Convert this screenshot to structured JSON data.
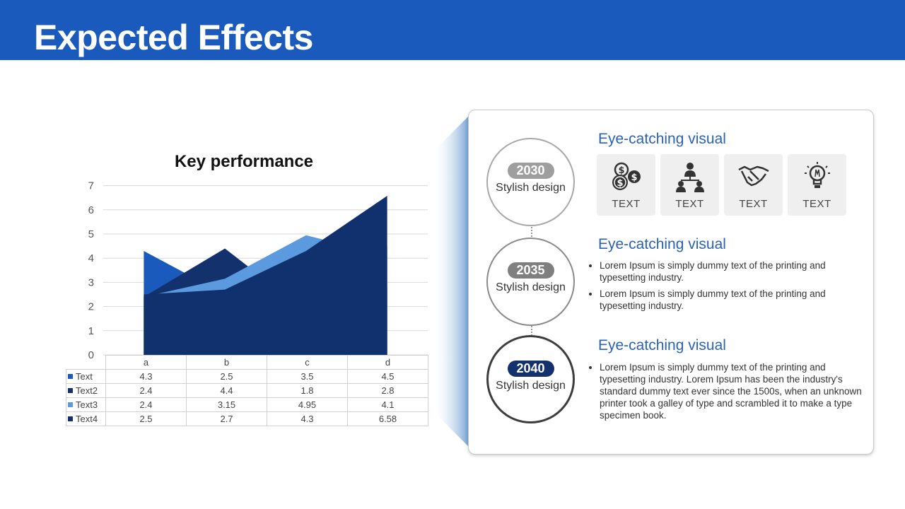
{
  "slide": {
    "title": "Expected Effects"
  },
  "chart_data": {
    "type": "area",
    "title": "Key performance",
    "categories": [
      "a",
      "b",
      "c",
      "d"
    ],
    "series": [
      {
        "name": "Text",
        "values": [
          4.3,
          2.5,
          3.5,
          4.5
        ],
        "color": "#1a5abd"
      },
      {
        "name": "Text2",
        "values": [
          2.4,
          4.4,
          1.8,
          2.8
        ],
        "color": "#13316d"
      },
      {
        "name": "Text3",
        "values": [
          2.4,
          3.15,
          4.95,
          4.1
        ],
        "color": "#5b9ade"
      },
      {
        "name": "Text4",
        "values": [
          2.5,
          2.7,
          4.3,
          6.58
        ],
        "color": "#11316e"
      }
    ],
    "ylim": [
      0,
      7
    ],
    "yticks": [
      "0",
      "1",
      "2",
      "3",
      "4",
      "5",
      "6",
      "7"
    ],
    "xlabel": "",
    "ylabel": "",
    "grid": true,
    "legend": "data-table"
  },
  "panel": {
    "rows": [
      {
        "year": "2030",
        "year_color": "#9e9e9e",
        "circle_border": "#a8a8a8",
        "subtitle": "Stylish design",
        "heading": "Eye-catching visual",
        "tiles": [
          {
            "icon": "coins-dollar-icon",
            "label": "TEXT"
          },
          {
            "icon": "team-hierarchy-icon",
            "label": "TEXT"
          },
          {
            "icon": "handshake-icon",
            "label": "TEXT"
          },
          {
            "icon": "lightbulb-icon",
            "label": "TEXT"
          }
        ]
      },
      {
        "year": "2035",
        "year_color": "#7f7f7f",
        "circle_border": "#8a8a8a",
        "subtitle": "Stylish design",
        "heading": "Eye-catching visual",
        "bullets": [
          "Lorem Ipsum is simply dummy text of the printing and typesetting industry.",
          "Lorem Ipsum is simply dummy text of the printing and typesetting industry."
        ]
      },
      {
        "year": "2040",
        "year_color": "#13316d",
        "circle_border": "#3d3d3d",
        "subtitle": "Stylish design",
        "heading": "Eye-catching visual",
        "bullets": [
          "Lorem Ipsum is simply dummy text of the printing and typesetting industry. Lorem Ipsum has been the industry's standard dummy text ever since the 1500s, when an unknown printer took a galley of type and scrambled it to make a type specimen book."
        ]
      }
    ]
  }
}
